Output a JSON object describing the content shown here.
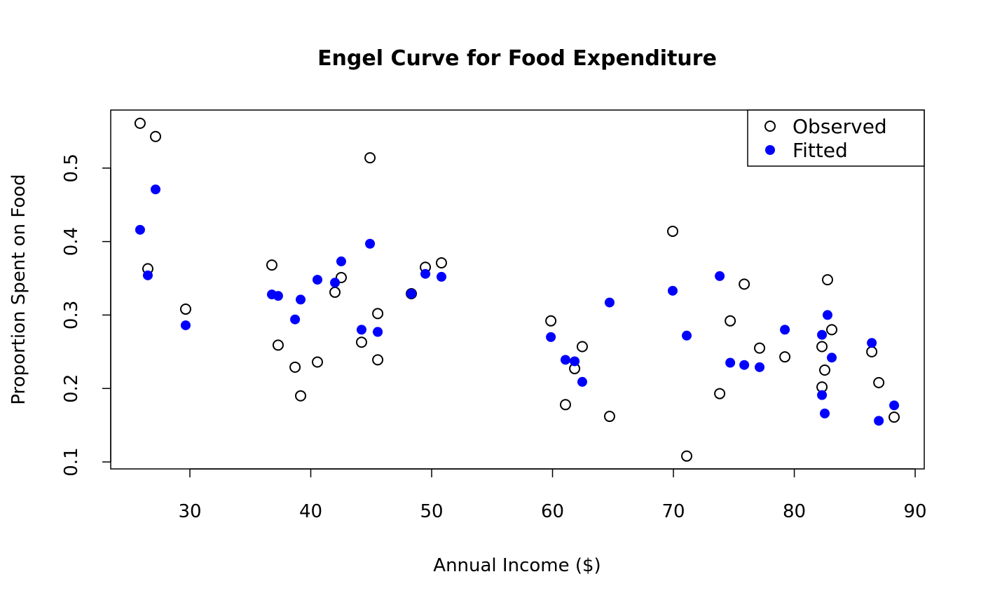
{
  "chart_data": {
    "type": "scatter",
    "title": "Engel Curve for Food Expenditure",
    "xlabel": "Annual Income ($)",
    "ylabel": "Proportion Spent on Food",
    "xlim": [
      23.45,
      90.75
    ],
    "ylim": [
      0.0905,
      0.579
    ],
    "xticks": [
      30,
      40,
      50,
      60,
      70,
      80,
      90
    ],
    "yticks": [
      0.1,
      0.2,
      0.3,
      0.4,
      0.5
    ],
    "grid": false,
    "legend_position": "top-right",
    "x": [
      25.88,
      27.16,
      26.52,
      29.65,
      36.78,
      37.3,
      38.7,
      39.16,
      40.55,
      42.0,
      42.52,
      44.2,
      44.9,
      45.54,
      45.54,
      48.32,
      49.48,
      50.81,
      59.86,
      61.07,
      61.83,
      62.46,
      64.72,
      69.94,
      71.1,
      73.83,
      74.7,
      75.86,
      77.13,
      79.22,
      82.29,
      82.29,
      82.52,
      82.75,
      83.1,
      86.41,
      86.99,
      88.26
    ],
    "series": [
      {
        "name": "Observed",
        "marker": "open-circle",
        "color": "#000000",
        "values": [
          0.561,
          0.543,
          0.363,
          0.308,
          0.368,
          0.259,
          0.229,
          0.19,
          0.236,
          0.331,
          0.351,
          0.263,
          0.514,
          0.302,
          0.239,
          0.329,
          0.365,
          0.371,
          0.292,
          0.178,
          0.227,
          0.257,
          0.162,
          0.414,
          0.108,
          0.193,
          0.292,
          0.342,
          0.255,
          0.243,
          0.257,
          0.202,
          0.225,
          0.348,
          0.28,
          0.25,
          0.208,
          0.161
        ]
      },
      {
        "name": "Fitted",
        "marker": "filled-circle",
        "color": "#0000ff",
        "values": [
          0.416,
          0.471,
          0.354,
          0.286,
          0.328,
          0.326,
          0.294,
          0.321,
          0.348,
          0.344,
          0.373,
          0.28,
          0.397,
          0.277,
          0.277,
          0.329,
          0.356,
          0.352,
          0.27,
          0.239,
          0.237,
          0.209,
          0.317,
          0.333,
          0.272,
          0.353,
          0.235,
          0.232,
          0.229,
          0.28,
          0.273,
          0.191,
          0.166,
          0.3,
          0.242,
          0.262,
          0.156,
          0.177
        ]
      }
    ]
  }
}
